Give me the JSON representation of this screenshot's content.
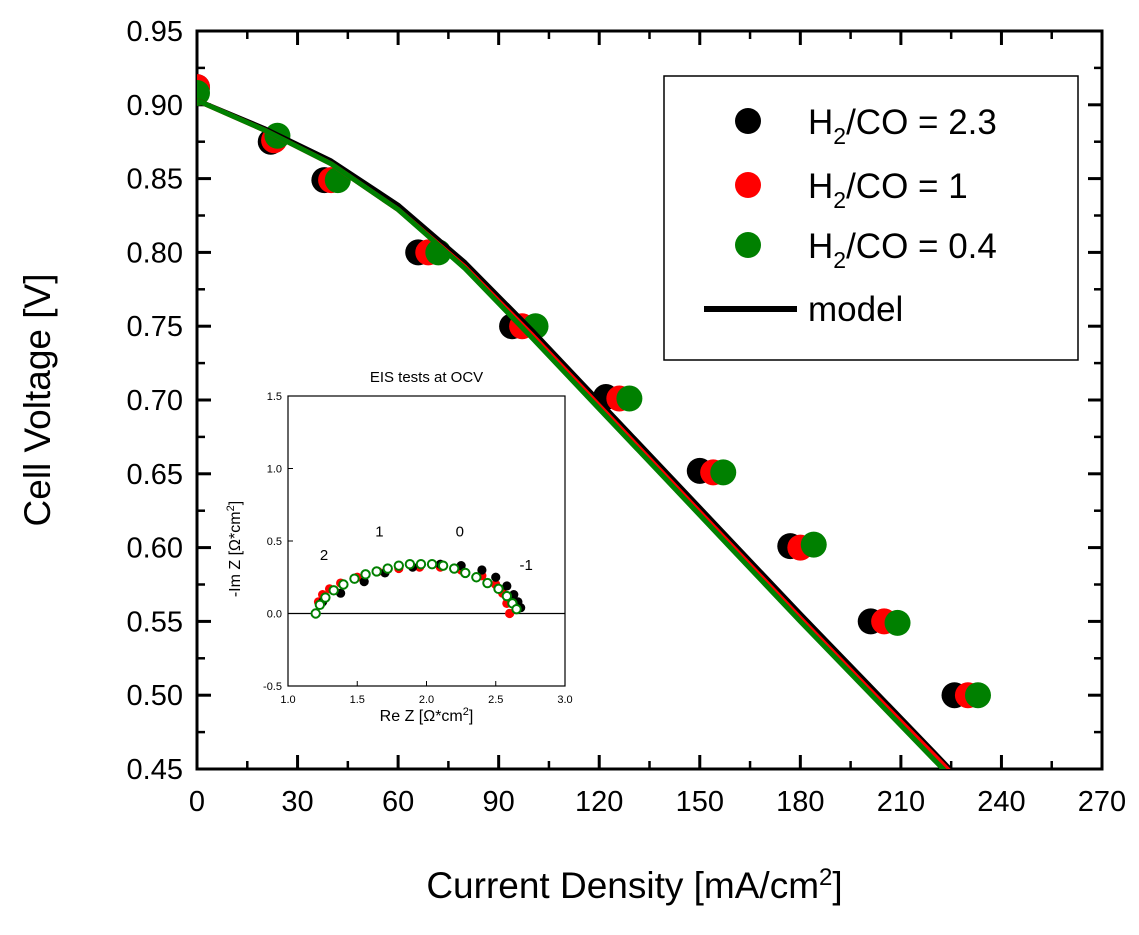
{
  "chart_data": [
    {
      "type": "scatter",
      "xlabel": "Current Density [mA/cm",
      "xlabel_sup": "2",
      "xlabel_end": "]",
      "ylabel": "Cell Voltage [V]",
      "xlim": [
        0,
        270
      ],
      "ylim": [
        0.45,
        0.95
      ],
      "x_ticks": [
        0,
        30,
        60,
        90,
        120,
        150,
        180,
        210,
        240,
        270
      ],
      "x_tick_labels": [
        "0",
        "30",
        "60",
        "90",
        "120",
        "150",
        "180",
        "210",
        "240",
        "270"
      ],
      "y_ticks": [
        0.45,
        0.5,
        0.55,
        0.6,
        0.65,
        0.7,
        0.75,
        0.8,
        0.85,
        0.9,
        0.95
      ],
      "y_tick_labels": [
        "0.45",
        "0.50",
        "0.55",
        "0.60",
        "0.65",
        "0.70",
        "0.75",
        "0.80",
        "0.85",
        "0.90",
        "0.95"
      ],
      "legend_position": "top-right",
      "series": [
        {
          "name": "H2/CO = 2.3",
          "label_main": "H",
          "label_sub": "2",
          "label_tail": "/CO = 2.3",
          "color": "#000000",
          "x": [
            0,
            22,
            38,
            66,
            94,
            122,
            150,
            177,
            201,
            226
          ],
          "y": [
            0.912,
            0.875,
            0.849,
            0.8,
            0.75,
            0.702,
            0.652,
            0.601,
            0.55,
            0.5
          ]
        },
        {
          "name": "H2/CO = 1",
          "label_main": "H",
          "label_sub": "2",
          "label_tail": "/CO = 1",
          "color": "#ff0000",
          "x": [
            0,
            23,
            40,
            69,
            97,
            126,
            154,
            180,
            205,
            230
          ],
          "y": [
            0.912,
            0.876,
            0.849,
            0.8,
            0.75,
            0.701,
            0.651,
            0.6,
            0.55,
            0.5
          ]
        },
        {
          "name": "H2/CO = 0.4",
          "label_main": "H",
          "label_sub": "2",
          "label_tail": "/CO = 0.4",
          "color": "#008000",
          "x": [
            0,
            24,
            42,
            72,
            101,
            129,
            157,
            184,
            209,
            233
          ],
          "y": [
            0.908,
            0.879,
            0.849,
            0.8,
            0.75,
            0.701,
            0.651,
            0.602,
            0.549,
            0.5
          ]
        }
      ],
      "model": {
        "name": "model",
        "lines": [
          {
            "color": "#000000",
            "x": [
              0,
              20,
              40,
              60,
              80,
              100,
              120,
              140,
              160,
              180,
              200,
              220,
              240,
              256
            ],
            "y": [
              0.903,
              0.884,
              0.862,
              0.832,
              0.793,
              0.747,
              0.699,
              0.651,
              0.603,
              0.555,
              0.508,
              0.461,
              0.413,
              0.375
            ]
          },
          {
            "color": "#ff0000",
            "x": [
              0,
              20,
              40,
              60,
              80,
              100,
              120,
              140,
              160,
              180,
              200,
              220,
              240,
              254
            ],
            "y": [
              0.903,
              0.883,
              0.86,
              0.829,
              0.79,
              0.744,
              0.696,
              0.648,
              0.6,
              0.552,
              0.505,
              0.459,
              0.412,
              0.378
            ]
          },
          {
            "color": "#008000",
            "x": [
              0,
              20,
              40,
              60,
              80,
              100,
              120,
              140,
              160,
              180,
              200,
              220,
              240,
              252
            ],
            "y": [
              0.903,
              0.883,
              0.86,
              0.829,
              0.789,
              0.742,
              0.694,
              0.646,
              0.598,
              0.55,
              0.503,
              0.456,
              0.41,
              0.38
            ]
          }
        ]
      }
    },
    {
      "type": "scatter",
      "title": "EIS tests at OCV",
      "xlabel": "Re Z [Ω*cm",
      "xlabel_sup": "2",
      "xlabel_end": "]",
      "ylabel": "-Im Z [Ω*cm",
      "ylabel_sup": "2",
      "ylabel_end": "]",
      "xlim": [
        1.0,
        3.0
      ],
      "ylim": [
        -0.5,
        1.5
      ],
      "x_ticks": [
        1.0,
        1.5,
        2.0,
        2.5,
        3.0
      ],
      "x_tick_labels": [
        "1.0",
        "1.5",
        "2.0",
        "2.5",
        "3.0"
      ],
      "y_ticks": [
        -0.5,
        0.0,
        0.5,
        1.0,
        1.5
      ],
      "y_tick_labels": [
        "-0.5",
        "0.0",
        "0.5",
        "1.0",
        "1.5"
      ],
      "zero_line": 0,
      "annotations": [
        {
          "text": "2",
          "x": 1.26,
          "y": 0.37
        },
        {
          "text": "1",
          "x": 1.66,
          "y": 0.53
        },
        {
          "text": "0",
          "x": 2.24,
          "y": 0.53
        },
        {
          "text": "-1",
          "x": 2.72,
          "y": 0.3
        }
      ],
      "series": [
        {
          "color": "#ff0000",
          "x": [
            1.2,
            1.22,
            1.25,
            1.3,
            1.38,
            1.5,
            1.65,
            1.8,
            1.95,
            2.1,
            2.25,
            2.4,
            2.5,
            2.55,
            2.58,
            2.6
          ],
          "y": [
            0.0,
            0.08,
            0.13,
            0.17,
            0.21,
            0.25,
            0.29,
            0.31,
            0.32,
            0.32,
            0.3,
            0.26,
            0.2,
            0.14,
            0.07,
            0.0
          ]
        },
        {
          "color": "#000000",
          "x": [
            1.2,
            1.25,
            1.38,
            1.55,
            1.7,
            1.9,
            2.1,
            2.25,
            2.4,
            2.5,
            2.58,
            2.63,
            2.66,
            2.68
          ],
          "y": [
            0.0,
            0.08,
            0.14,
            0.22,
            0.28,
            0.32,
            0.34,
            0.33,
            0.3,
            0.25,
            0.19,
            0.13,
            0.08,
            0.04
          ]
        },
        {
          "color": "#008000",
          "x": [
            1.2,
            1.23,
            1.27,
            1.33,
            1.4,
            1.48,
            1.56,
            1.64,
            1.72,
            1.8,
            1.88,
            1.96,
            2.04,
            2.12,
            2.2,
            2.28,
            2.36,
            2.44,
            2.52,
            2.58,
            2.62,
            2.65
          ],
          "y": [
            0.0,
            0.06,
            0.11,
            0.16,
            0.2,
            0.24,
            0.27,
            0.29,
            0.31,
            0.33,
            0.34,
            0.34,
            0.34,
            0.33,
            0.31,
            0.28,
            0.25,
            0.21,
            0.17,
            0.12,
            0.07,
            0.03
          ],
          "hollow": true
        }
      ]
    }
  ]
}
